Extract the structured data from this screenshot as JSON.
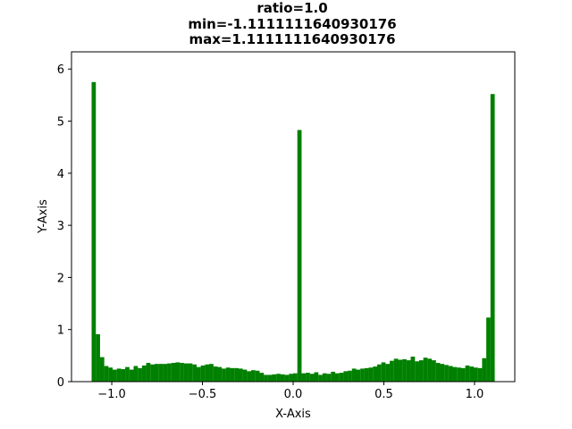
{
  "chart_data": {
    "type": "bar",
    "title_lines": [
      "ratio=1.0",
      "min=-1.1111111640930176",
      "max=1.1111111640930176"
    ],
    "xlabel": "X-Axis",
    "ylabel": "Y-Axis",
    "xlim": [
      -1.222,
      1.222
    ],
    "ylim": [
      0,
      6.33
    ],
    "x_ticks": [
      -1.0,
      -0.5,
      0.0,
      0.5,
      1.0
    ],
    "x_tick_labels": [
      "−1.0",
      "−0.5",
      "0.0",
      "0.5",
      "1.0"
    ],
    "y_ticks": [
      0,
      1,
      2,
      3,
      4,
      5,
      6
    ],
    "y_tick_labels": [
      "0",
      "1",
      "2",
      "3",
      "4",
      "5",
      "6"
    ],
    "bar_color": "#008000",
    "bin_range": [
      -1.1111,
      1.1111
    ],
    "heights": [
      5.75,
      0.91,
      0.47,
      0.3,
      0.27,
      0.23,
      0.25,
      0.24,
      0.28,
      0.23,
      0.3,
      0.26,
      0.31,
      0.36,
      0.33,
      0.34,
      0.34,
      0.34,
      0.35,
      0.36,
      0.37,
      0.36,
      0.35,
      0.35,
      0.33,
      0.28,
      0.31,
      0.33,
      0.34,
      0.29,
      0.28,
      0.25,
      0.27,
      0.26,
      0.26,
      0.25,
      0.23,
      0.2,
      0.22,
      0.21,
      0.17,
      0.13,
      0.13,
      0.14,
      0.15,
      0.14,
      0.13,
      0.15,
      0.16,
      4.83,
      0.16,
      0.17,
      0.15,
      0.18,
      0.13,
      0.16,
      0.15,
      0.19,
      0.16,
      0.17,
      0.2,
      0.21,
      0.25,
      0.23,
      0.25,
      0.26,
      0.27,
      0.29,
      0.33,
      0.37,
      0.34,
      0.4,
      0.44,
      0.42,
      0.43,
      0.41,
      0.48,
      0.39,
      0.41,
      0.46,
      0.44,
      0.41,
      0.36,
      0.34,
      0.32,
      0.3,
      0.28,
      0.27,
      0.26,
      0.31,
      0.29,
      0.27,
      0.26,
      0.45,
      1.23,
      5.52
    ]
  }
}
